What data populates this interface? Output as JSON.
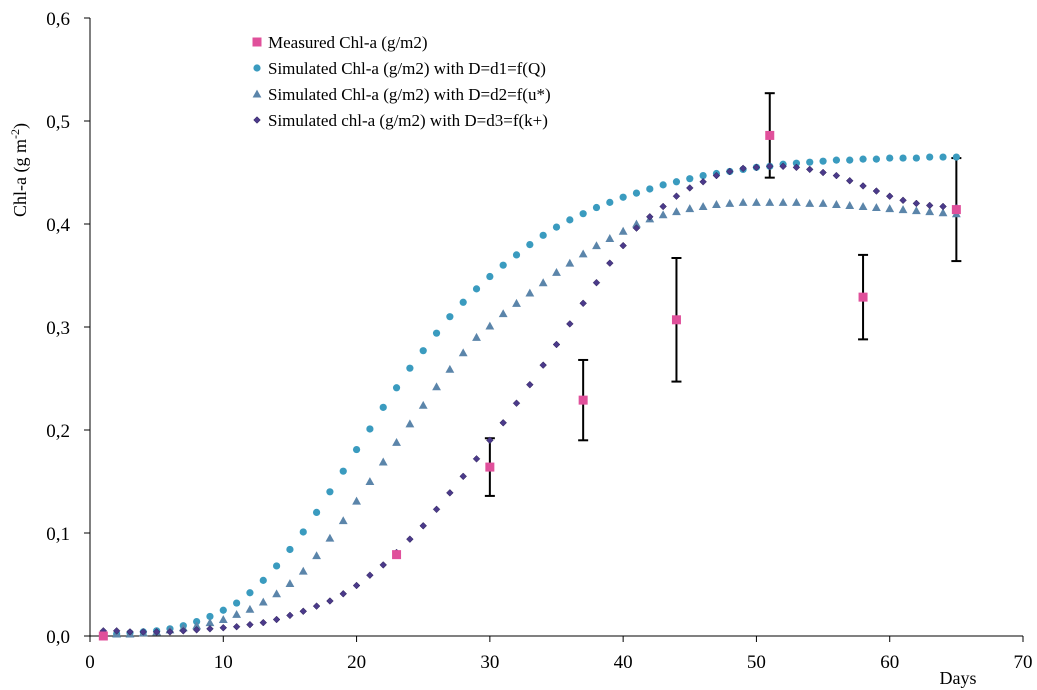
{
  "chart_data": {
    "type": "scatter",
    "xlim": [
      0,
      70
    ],
    "ylim": [
      0,
      0.6
    ],
    "x_ticks": [
      "0",
      "10",
      "20",
      "30",
      "40",
      "50",
      "60",
      "70"
    ],
    "y_ticks": [
      "0,0",
      "0,1",
      "0,2",
      "0,3",
      "0,4",
      "0,5",
      "0,6"
    ],
    "xlabel": "Days",
    "ylabel_main": "Chl-a (g m",
    "ylabel_sup": "-2",
    "ylabel_close": ")",
    "grid": false,
    "legend_position": "top-center",
    "series": [
      {
        "name": "Measured Chl-a (g/m2)",
        "marker": "square",
        "color": "#e0509b",
        "x": [
          1,
          23,
          30,
          37,
          44,
          51,
          58,
          65
        ],
        "y": [
          0.0,
          0.079,
          0.164,
          0.229,
          0.307,
          0.486,
          0.329,
          0.414
        ],
        "err": [
          0,
          0,
          0.028,
          0.039,
          0.06,
          0.041,
          0.041,
          0.05
        ]
      },
      {
        "name": "Simulated Chl-a (g/m2) with D=d1=f(Q)",
        "marker": "circle",
        "color": "#3a9bbf",
        "x": [
          1,
          2,
          3,
          4,
          5,
          6,
          7,
          8,
          9,
          10,
          11,
          12,
          13,
          14,
          15,
          16,
          17,
          18,
          19,
          20,
          21,
          22,
          23,
          24,
          25,
          26,
          27,
          28,
          29,
          30,
          31,
          32,
          33,
          34,
          35,
          36,
          37,
          38,
          39,
          40,
          41,
          42,
          43,
          44,
          45,
          46,
          47,
          48,
          49,
          50,
          51,
          52,
          53,
          54,
          55,
          56,
          57,
          58,
          59,
          60,
          61,
          62,
          63,
          64,
          65
        ],
        "y": [
          0.001,
          0.002,
          0.003,
          0.004,
          0.005,
          0.007,
          0.01,
          0.014,
          0.019,
          0.025,
          0.032,
          0.042,
          0.054,
          0.068,
          0.084,
          0.101,
          0.12,
          0.14,
          0.16,
          0.181,
          0.201,
          0.222,
          0.241,
          0.26,
          0.277,
          0.294,
          0.31,
          0.324,
          0.337,
          0.349,
          0.36,
          0.37,
          0.38,
          0.389,
          0.397,
          0.404,
          0.41,
          0.416,
          0.421,
          0.426,
          0.43,
          0.434,
          0.438,
          0.441,
          0.444,
          0.447,
          0.449,
          0.451,
          0.453,
          0.455,
          0.456,
          0.458,
          0.459,
          0.46,
          0.461,
          0.462,
          0.462,
          0.463,
          0.463,
          0.464,
          0.464,
          0.464,
          0.465,
          0.465,
          0.465
        ]
      },
      {
        "name": "Simulated Chl-a (g/m2) with D=d2=f(u*)",
        "marker": "triangle",
        "color": "#5b85aa",
        "x": [
          1,
          2,
          3,
          4,
          5,
          6,
          7,
          8,
          9,
          10,
          11,
          12,
          13,
          14,
          15,
          16,
          17,
          18,
          19,
          20,
          21,
          22,
          23,
          24,
          25,
          26,
          27,
          28,
          29,
          30,
          31,
          32,
          33,
          34,
          35,
          36,
          37,
          38,
          39,
          40,
          41,
          42,
          43,
          44,
          45,
          46,
          47,
          48,
          49,
          50,
          51,
          52,
          53,
          54,
          55,
          56,
          57,
          58,
          59,
          60,
          61,
          62,
          63,
          64,
          65
        ],
        "y": [
          0.001,
          0.002,
          0.002,
          0.003,
          0.004,
          0.006,
          0.008,
          0.01,
          0.013,
          0.016,
          0.021,
          0.026,
          0.033,
          0.041,
          0.051,
          0.063,
          0.078,
          0.095,
          0.112,
          0.131,
          0.15,
          0.169,
          0.188,
          0.206,
          0.224,
          0.242,
          0.259,
          0.275,
          0.29,
          0.301,
          0.313,
          0.323,
          0.333,
          0.343,
          0.353,
          0.362,
          0.371,
          0.379,
          0.386,
          0.393,
          0.4,
          0.405,
          0.409,
          0.412,
          0.415,
          0.417,
          0.419,
          0.42,
          0.421,
          0.421,
          0.421,
          0.421,
          0.421,
          0.42,
          0.42,
          0.419,
          0.418,
          0.417,
          0.416,
          0.415,
          0.414,
          0.413,
          0.412,
          0.411,
          0.41
        ]
      },
      {
        "name": "Simulated chl-a (g/m2) with D=d3=f(k+)",
        "marker": "diamond",
        "color": "#4b3a8a",
        "x": [
          1,
          2,
          3,
          4,
          5,
          6,
          7,
          8,
          9,
          10,
          11,
          12,
          13,
          14,
          15,
          16,
          17,
          18,
          19,
          20,
          21,
          22,
          23,
          24,
          25,
          26,
          27,
          28,
          29,
          30,
          31,
          32,
          33,
          34,
          35,
          36,
          37,
          38,
          39,
          40,
          41,
          42,
          43,
          44,
          45,
          46,
          47,
          48,
          49,
          50,
          51,
          52,
          53,
          54,
          55,
          56,
          57,
          58,
          59,
          60,
          61,
          62,
          63,
          64,
          65
        ],
        "y": [
          0.005,
          0.005,
          0.004,
          0.004,
          0.004,
          0.004,
          0.005,
          0.006,
          0.007,
          0.008,
          0.009,
          0.011,
          0.013,
          0.016,
          0.02,
          0.024,
          0.029,
          0.034,
          0.041,
          0.049,
          0.059,
          0.069,
          0.081,
          0.094,
          0.107,
          0.123,
          0.139,
          0.155,
          0.172,
          0.19,
          0.207,
          0.226,
          0.244,
          0.263,
          0.283,
          0.303,
          0.323,
          0.343,
          0.362,
          0.379,
          0.396,
          0.407,
          0.417,
          0.427,
          0.435,
          0.441,
          0.447,
          0.451,
          0.454,
          0.455,
          0.456,
          0.456,
          0.455,
          0.453,
          0.45,
          0.447,
          0.442,
          0.437,
          0.432,
          0.427,
          0.423,
          0.42,
          0.418,
          0.417,
          0.416
        ]
      }
    ]
  }
}
